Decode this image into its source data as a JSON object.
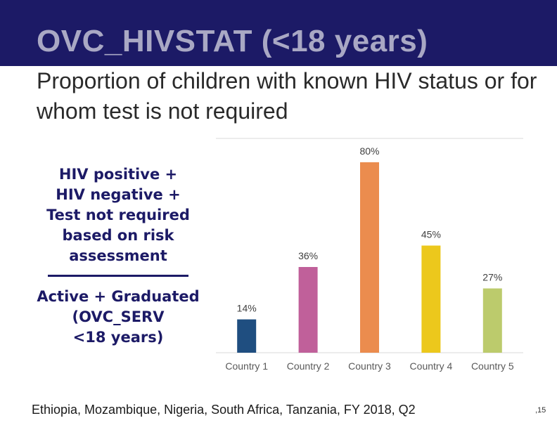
{
  "header": {
    "title": "OVC_HIVSTAT (<18 years)",
    "subtitle": "Proportion of children with known HIV status or for whom test is not required"
  },
  "formula": {
    "numerator_lines": [
      "HIV positive +",
      "HIV negative +",
      "Test not required",
      "based on risk",
      "assessment"
    ],
    "denominator_lines": [
      "Active + Graduated",
      "(OVC_SERV",
      "<18 years)"
    ]
  },
  "chart_data": {
    "type": "bar",
    "title": "",
    "xlabel": "",
    "ylabel": "",
    "ylim": [
      0,
      90
    ],
    "categories": [
      "Country 1",
      "Country 2",
      "Country 3",
      "Country 4",
      "Country 5"
    ],
    "values": [
      14,
      36,
      80,
      45,
      27
    ],
    "labels": [
      "14%",
      "36%",
      "80%",
      "45%",
      "27%"
    ],
    "colors": [
      "#1f4e80",
      "#c0609a",
      "#eb8c4e",
      "#ecc81c",
      "#bccb6c"
    ],
    "grid": false,
    "legend": "none"
  },
  "footer": {
    "note": "Ethiopia, Mozambique, Nigeria, South Africa, Tanzania, FY 2018, Q2",
    "page": ",15"
  }
}
